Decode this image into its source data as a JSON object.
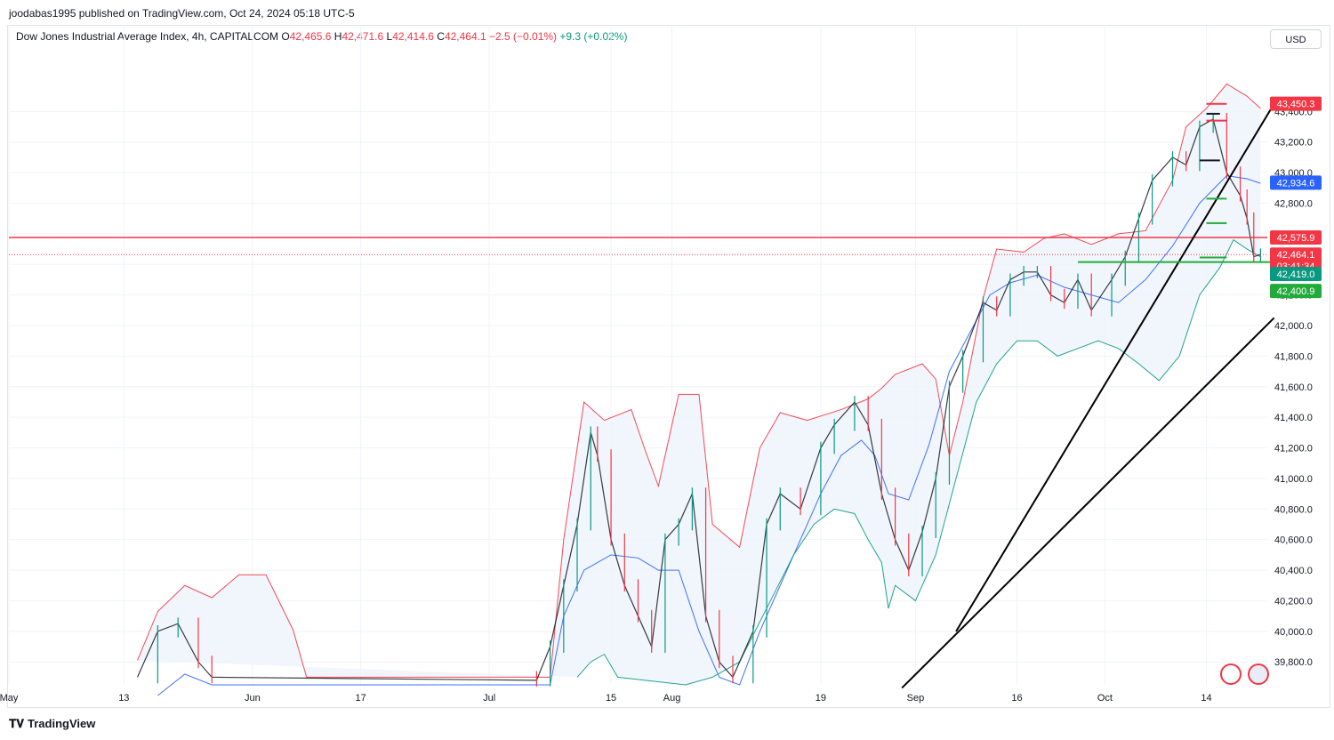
{
  "header": {
    "published": "joodabas1995 published on TradingView.com, Oct 24, 2024 05:18 UTC-5",
    "symbol": "Dow Jones Industrial Average Index, 4h, CAPITALCOM",
    "o_label": "O",
    "o_value": "42,465.6",
    "h_label": "H",
    "h_value": "42,471.6",
    "l_label": "L",
    "l_value": "42,414.6",
    "c_label": "C",
    "c_value": "42,464.1",
    "change": "−2.5 (−0.01%)",
    "change2": "+9.3 (+0.02%)"
  },
  "currency_button": "USD",
  "footer": {
    "brand": "TradingView"
  },
  "colors": {
    "up": "#089981",
    "down": "#f23645",
    "band_upper": "#f23645",
    "band_mid": "#2962ff",
    "band_lower": "#089981",
    "band_fill": "#eef4fb"
  },
  "chart_data": {
    "type": "line",
    "title": "Dow Jones Industrial Average Index, 4h, CAPITALCOM",
    "x_ticks": [
      "May",
      "13",
      "Jun",
      "17",
      "Jul",
      "15",
      "Aug",
      "19",
      "Sep",
      "16",
      "Oct",
      "14"
    ],
    "y_ticks": [
      "39,800.0",
      "40,000.0",
      "40,200.0",
      "40,400.0",
      "40,600.0",
      "40,800.0",
      "41,000.0",
      "41,200.0",
      "41,400.0",
      "41,600.0",
      "41,800.0",
      "42,000.0",
      "42,200.0",
      "42,400.0",
      "42,600.0",
      "42,800.0",
      "43,000.0",
      "43,200.0",
      "43,400.0"
    ],
    "y_range": [
      39650,
      43780
    ],
    "x_range_days": [
      0,
      186
    ],
    "x_origin": "2024-04-26",
    "price_labels": [
      {
        "text": "43,450.3",
        "value": 43450.3,
        "color": "#f23645"
      },
      {
        "text": "42,934.6",
        "value": 42934.6,
        "color": "#2962ff"
      },
      {
        "text": "42,575.9",
        "value": 42575.9,
        "color": "#f23645"
      },
      {
        "text": "42,464.1",
        "value": 42464.1,
        "color": "#f23645"
      },
      {
        "text": "03:41:34",
        "value": 42400.0,
        "color": "#f23645"
      },
      {
        "text": "42,419.0",
        "value": 42419.0,
        "color": "#089981"
      },
      {
        "text": "42,400.9",
        "value": 42400.9,
        "color": "#22ab3a"
      }
    ],
    "horizontal_level": 42575.9,
    "last_price": 42464.1,
    "trendlines": [
      {
        "from": [
          "2024-09-13",
          40000
        ],
        "to": [
          "2024-10-30",
          43450
        ]
      },
      {
        "from": [
          "2024-09-05",
          39630
        ],
        "to": [
          "2024-10-30",
          42050
        ]
      }
    ],
    "segments": [
      {
        "color": "#f23645",
        "date_from": "2024-10-20",
        "date_to": "2024-10-23",
        "value": 43450
      },
      {
        "color": "#f23645",
        "date_from": "2024-10-20",
        "date_to": "2024-10-23",
        "value": 43340
      },
      {
        "color": "#131722",
        "date_from": "2024-10-20",
        "date_to": "2024-10-22",
        "value": 43385
      },
      {
        "color": "#131722",
        "date_from": "2024-10-19",
        "date_to": "2024-10-22",
        "value": 43080
      },
      {
        "color": "#22ab3a",
        "date_from": "2024-10-20",
        "date_to": "2024-10-23",
        "value": 42830
      },
      {
        "color": "#22ab3a",
        "date_from": "2024-10-20",
        "date_to": "2024-10-23",
        "value": 42670
      },
      {
        "color": "#22ab3a",
        "date_from": "2024-10-19",
        "date_to": "2024-10-23",
        "value": 42445
      },
      {
        "color": "#22ab3a",
        "date_from": "2024-10-01",
        "date_to": "2024-10-30",
        "value": 42415
      }
    ],
    "series": [
      {
        "role": "upper_band",
        "points": [
          [
            19,
            39810
          ],
          [
            22,
            40130
          ],
          [
            26,
            40300
          ],
          [
            30,
            40220
          ],
          [
            34,
            40370
          ],
          [
            38,
            40370
          ],
          [
            42,
            40010
          ],
          [
            44,
            39700
          ],
          [
            80,
            39700
          ],
          [
            82,
            40600
          ],
          [
            85,
            41500
          ],
          [
            88,
            41380
          ],
          [
            92,
            41450
          ],
          [
            94,
            41190
          ],
          [
            96,
            40950
          ],
          [
            99,
            41550
          ],
          [
            102,
            41550
          ],
          [
            104,
            40700
          ],
          [
            108,
            40550
          ],
          [
            111,
            41200
          ],
          [
            114,
            41430
          ],
          [
            118,
            41380
          ],
          [
            123,
            41450
          ],
          [
            127,
            41520
          ],
          [
            129,
            41590
          ],
          [
            131,
            41680
          ],
          [
            135,
            41750
          ],
          [
            137,
            41650
          ],
          [
            139,
            41150
          ],
          [
            141,
            41500
          ],
          [
            144,
            42180
          ],
          [
            146,
            42500
          ],
          [
            150,
            42480
          ],
          [
            153,
            42570
          ],
          [
            156,
            42600
          ],
          [
            160,
            42530
          ],
          [
            164,
            42600
          ],
          [
            168,
            42620
          ],
          [
            172,
            42950
          ],
          [
            174,
            43300
          ],
          [
            177,
            43420
          ],
          [
            180,
            43580
          ],
          [
            183,
            43500
          ],
          [
            185,
            43420
          ]
        ]
      },
      {
        "role": "middle_band",
        "points": [
          [
            22,
            39580
          ],
          [
            26,
            39720
          ],
          [
            30,
            39650
          ],
          [
            80,
            39650
          ],
          [
            82,
            40100
          ],
          [
            85,
            40400
          ],
          [
            89,
            40500
          ],
          [
            93,
            40480
          ],
          [
            96,
            40400
          ],
          [
            99,
            40400
          ],
          [
            102,
            40000
          ],
          [
            105,
            39700
          ],
          [
            108,
            39650
          ],
          [
            111,
            40000
          ],
          [
            114,
            40300
          ],
          [
            117,
            40600
          ],
          [
            120,
            40900
          ],
          [
            123,
            41150
          ],
          [
            126,
            41250
          ],
          [
            128,
            41150
          ],
          [
            130,
            40900
          ],
          [
            133,
            40860
          ],
          [
            136,
            41220
          ],
          [
            139,
            41700
          ],
          [
            142,
            41950
          ],
          [
            145,
            42200
          ],
          [
            148,
            42280
          ],
          [
            152,
            42330
          ],
          [
            156,
            42250
          ],
          [
            160,
            42200
          ],
          [
            164,
            42150
          ],
          [
            168,
            42300
          ],
          [
            172,
            42520
          ],
          [
            176,
            42800
          ],
          [
            180,
            42980
          ],
          [
            183,
            42960
          ],
          [
            185,
            42930
          ]
        ]
      },
      {
        "role": "lower_band",
        "points": [
          [
            84,
            39700
          ],
          [
            86,
            39800
          ],
          [
            88,
            39850
          ],
          [
            90,
            39700
          ],
          [
            100,
            39650
          ],
          [
            104,
            39700
          ],
          [
            108,
            39800
          ],
          [
            112,
            40150
          ],
          [
            116,
            40500
          ],
          [
            119,
            40700
          ],
          [
            122,
            40800
          ],
          [
            125,
            40770
          ],
          [
            127,
            40600
          ],
          [
            129,
            40450
          ],
          [
            130,
            40150
          ],
          [
            131,
            40300
          ],
          [
            134,
            40200
          ],
          [
            137,
            40500
          ],
          [
            140,
            41000
          ],
          [
            143,
            41500
          ],
          [
            146,
            41750
          ],
          [
            149,
            41900
          ],
          [
            152,
            41900
          ],
          [
            155,
            41800
          ],
          [
            158,
            41850
          ],
          [
            161,
            41900
          ],
          [
            164,
            41850
          ],
          [
            167,
            41750
          ],
          [
            170,
            41640
          ],
          [
            173,
            41800
          ],
          [
            176,
            42200
          ],
          [
            179,
            42380
          ],
          [
            181,
            42560
          ],
          [
            183,
            42500
          ],
          [
            185,
            42450
          ]
        ]
      },
      {
        "role": "price",
        "points": [
          [
            19,
            39700
          ],
          [
            22,
            40000
          ],
          [
            25,
            40050
          ],
          [
            28,
            39800
          ],
          [
            30,
            39700
          ],
          [
            78,
            39680
          ],
          [
            80,
            39900
          ],
          [
            82,
            40300
          ],
          [
            84,
            40700
          ],
          [
            86,
            41300
          ],
          [
            87,
            41150
          ],
          [
            89,
            40600
          ],
          [
            91,
            40300
          ],
          [
            93,
            40100
          ],
          [
            95,
            39900
          ],
          [
            97,
            40600
          ],
          [
            99,
            40700
          ],
          [
            101,
            40900
          ],
          [
            103,
            40100
          ],
          [
            105,
            39800
          ],
          [
            107,
            39700
          ],
          [
            110,
            40000
          ],
          [
            112,
            40700
          ],
          [
            114,
            40900
          ],
          [
            117,
            40800
          ],
          [
            120,
            41200
          ],
          [
            122,
            41350
          ],
          [
            125,
            41500
          ],
          [
            127,
            41350
          ],
          [
            129,
            40900
          ],
          [
            131,
            40600
          ],
          [
            133,
            40400
          ],
          [
            135,
            40650
          ],
          [
            137,
            41000
          ],
          [
            139,
            41600
          ],
          [
            141,
            41800
          ],
          [
            144,
            42150
          ],
          [
            146,
            42100
          ],
          [
            148,
            42300
          ],
          [
            150,
            42350
          ],
          [
            152,
            42350
          ],
          [
            154,
            42200
          ],
          [
            156,
            42150
          ],
          [
            158,
            42300
          ],
          [
            160,
            42100
          ],
          [
            163,
            42300
          ],
          [
            165,
            42450
          ],
          [
            167,
            42700
          ],
          [
            169,
            42950
          ],
          [
            172,
            43100
          ],
          [
            174,
            43050
          ],
          [
            176,
            43300
          ],
          [
            178,
            43350
          ],
          [
            180,
            43000
          ],
          [
            182,
            42850
          ],
          [
            183,
            42700
          ],
          [
            184,
            42450
          ],
          [
            185,
            42464.1
          ]
        ]
      }
    ],
    "grid": true,
    "legend": "none"
  }
}
